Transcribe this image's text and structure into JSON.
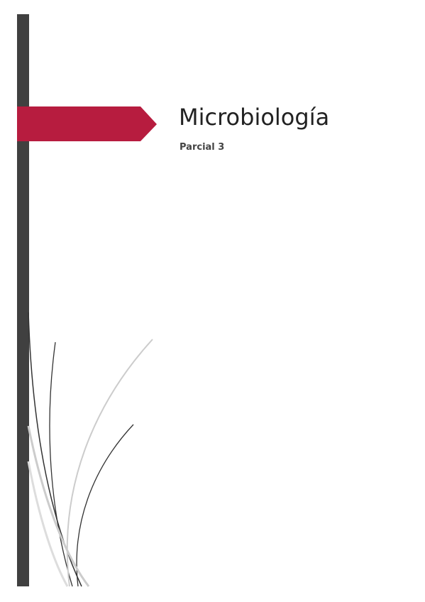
{
  "cover": {
    "title": "Microbiología",
    "subtitle": "Parcial 3"
  }
}
